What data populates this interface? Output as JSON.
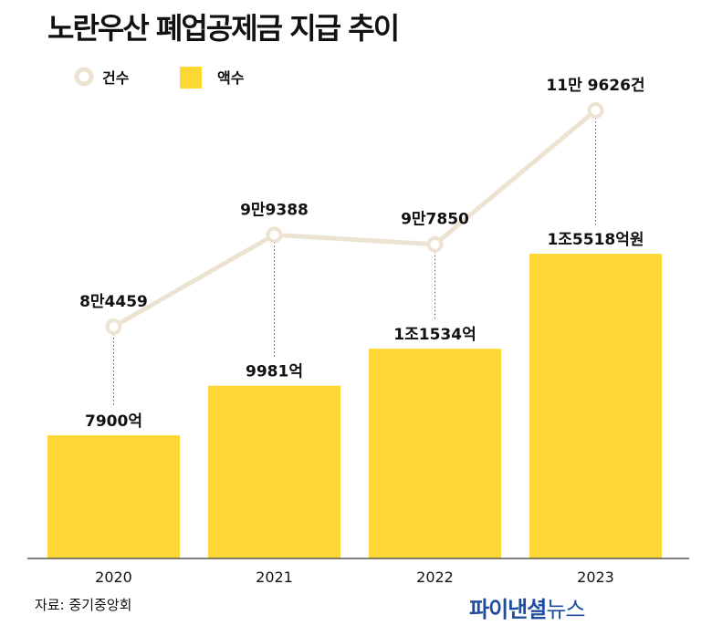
{
  "chart_data": {
    "type": "bar+line",
    "title": "노란우산 폐업공제금 지급 추이",
    "categories": [
      "2020",
      "2021",
      "2022",
      "2023"
    ],
    "series": [
      {
        "name": "액수",
        "type": "bar",
        "values": [
          7900,
          9981,
          11534,
          15518
        ],
        "unit": "억원",
        "labels": [
          "7900억",
          "9981억",
          "1조1534억",
          "1조5518억원"
        ],
        "color": "#fdd835"
      },
      {
        "name": "건수",
        "type": "line",
        "values": [
          84459,
          99388,
          97850,
          119626
        ],
        "unit": "건",
        "labels": [
          "8만4459",
          "9만9388",
          "9만7850",
          "11만 9626건"
        ],
        "color": "#ece3d2"
      }
    ],
    "legend": "top-left",
    "grid": false
  },
  "source": "자료: 중기중앙회",
  "logo": {
    "bold": "파이낸셜",
    "light": "뉴스"
  }
}
